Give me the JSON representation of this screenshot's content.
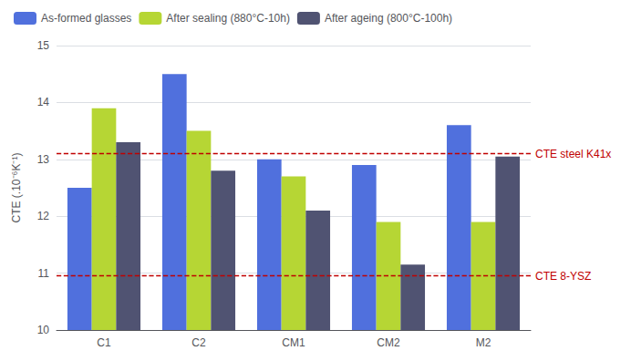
{
  "chart_data": {
    "type": "bar",
    "categories": [
      "C1",
      "C2",
      "CM1",
      "CM2",
      "M2"
    ],
    "series": [
      {
        "name": "As-formed glasses",
        "values": [
          12.5,
          14.5,
          13.0,
          12.9,
          13.6
        ]
      },
      {
        "name": "After sealing (880°C-10h)",
        "values": [
          13.9,
          13.5,
          12.7,
          11.9,
          11.9
        ]
      },
      {
        "name": "After ageing (800°C-100h)",
        "values": [
          13.3,
          12.8,
          12.1,
          11.15,
          13.05
        ]
      }
    ],
    "ylabel": "CTE (.10⁻⁶K⁻¹)",
    "ylim": [
      10,
      15
    ],
    "yticks": [
      10,
      11,
      12,
      13,
      14,
      15
    ],
    "grid": true,
    "legend": "upper left",
    "annotations": [
      {
        "text": "CTE steel K41x",
        "y": 13.1,
        "color": "#c00000"
      },
      {
        "text": "CTE 8-YSZ",
        "y": 10.95,
        "color": "#c00000"
      }
    ]
  }
}
